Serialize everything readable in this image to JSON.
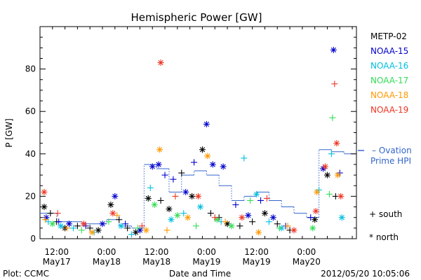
{
  "chart_data": {
    "type": "scatter",
    "title": "Hemispheric Power [GW]",
    "ylabel": "P [GW]",
    "xlabel": "Date and Time",
    "ylim": [
      0,
      100
    ],
    "yticks": [
      0,
      20,
      40,
      60,
      80
    ],
    "xlim": [
      "2012-05-17T08:00",
      "2012-05-20T12:00"
    ],
    "xticks": [
      {
        "at": "2012-05-17T12:00",
        "time": "12:00",
        "date": "May17"
      },
      {
        "at": "2012-05-18T00:00",
        "time": "0:00",
        "date": "May18"
      },
      {
        "at": "2012-05-18T12:00",
        "time": "12:00",
        "date": "May18"
      },
      {
        "at": "2012-05-19T00:00",
        "time": "0:00",
        "date": "May19"
      },
      {
        "at": "2012-05-19T12:00",
        "time": "12:00",
        "date": "May19"
      },
      {
        "at": "2012-05-20T00:00",
        "time": "0:00",
        "date": "May20"
      }
    ],
    "markers": {
      "south": "+ south",
      "north": "* north"
    },
    "series": [
      {
        "name": "METP-02",
        "color": "#000000",
        "points": [
          {
            "x": "2012-05-17T09:00",
            "y": 15,
            "m": "north"
          },
          {
            "x": "2012-05-17T10:30",
            "y": 12,
            "m": "south"
          },
          {
            "x": "2012-05-17T12:00",
            "y": 8,
            "m": "south"
          },
          {
            "x": "2012-05-17T14:00",
            "y": 5,
            "m": "north"
          },
          {
            "x": "2012-05-17T17:00",
            "y": 6,
            "m": "south"
          },
          {
            "x": "2012-05-17T20:00",
            "y": 5,
            "m": "south"
          },
          {
            "x": "2012-05-17T22:00",
            "y": 4,
            "m": "north"
          },
          {
            "x": "2012-05-18T01:00",
            "y": 16,
            "m": "north"
          },
          {
            "x": "2012-05-18T03:00",
            "y": 9,
            "m": "south"
          },
          {
            "x": "2012-05-18T05:00",
            "y": 5,
            "m": "south"
          },
          {
            "x": "2012-05-18T07:00",
            "y": 3,
            "m": "north"
          },
          {
            "x": "2012-05-18T10:00",
            "y": 19,
            "m": "north"
          },
          {
            "x": "2012-05-18T13:00",
            "y": 18,
            "m": "south"
          },
          {
            "x": "2012-05-18T15:00",
            "y": 14,
            "m": "north"
          },
          {
            "x": "2012-05-18T18:00",
            "y": 31,
            "m": "south"
          },
          {
            "x": "2012-05-18T20:30",
            "y": 20,
            "m": "north"
          },
          {
            "x": "2012-05-18T23:00",
            "y": 42,
            "m": "north"
          },
          {
            "x": "2012-05-19T01:00",
            "y": 12,
            "m": "south"
          },
          {
            "x": "2012-05-19T03:00",
            "y": 10,
            "m": "south"
          },
          {
            "x": "2012-05-19T05:00",
            "y": 7,
            "m": "north"
          },
          {
            "x": "2012-05-19T08:00",
            "y": 6,
            "m": "south"
          },
          {
            "x": "2012-05-19T11:00",
            "y": 8,
            "m": "south"
          },
          {
            "x": "2012-05-19T14:00",
            "y": 12,
            "m": "north"
          },
          {
            "x": "2012-05-19T17:00",
            "y": 7,
            "m": "south"
          },
          {
            "x": "2012-05-19T20:00",
            "y": 4,
            "m": "south"
          },
          {
            "x": "2012-05-20T02:00",
            "y": 9,
            "m": "north"
          },
          {
            "x": "2012-05-20T05:00",
            "y": 30,
            "m": "north"
          },
          {
            "x": "2012-05-20T07:00",
            "y": 20,
            "m": "south"
          }
        ]
      },
      {
        "name": "NOAA-15",
        "color": "#0000cc",
        "points": [
          {
            "x": "2012-05-17T09:30",
            "y": 10,
            "m": "north"
          },
          {
            "x": "2012-05-17T12:30",
            "y": 8,
            "m": "south"
          },
          {
            "x": "2012-05-17T15:00",
            "y": 7,
            "m": "north"
          },
          {
            "x": "2012-05-17T19:00",
            "y": 6,
            "m": "south"
          },
          {
            "x": "2012-05-17T23:00",
            "y": 7,
            "m": "north"
          },
          {
            "x": "2012-05-18T02:00",
            "y": 20,
            "m": "north"
          },
          {
            "x": "2012-05-18T04:30",
            "y": 7,
            "m": "south"
          },
          {
            "x": "2012-05-18T08:00",
            "y": 4,
            "m": "north"
          },
          {
            "x": "2012-05-18T11:00",
            "y": 34,
            "m": "north"
          },
          {
            "x": "2012-05-18T12:30",
            "y": 35,
            "m": "north"
          },
          {
            "x": "2012-05-18T14:00",
            "y": 30,
            "m": "south"
          },
          {
            "x": "2012-05-18T16:00",
            "y": 28,
            "m": "south"
          },
          {
            "x": "2012-05-18T19:00",
            "y": 22,
            "m": "north"
          },
          {
            "x": "2012-05-18T21:00",
            "y": 36,
            "m": "south"
          },
          {
            "x": "2012-05-19T00:00",
            "y": 54,
            "m": "north"
          },
          {
            "x": "2012-05-19T01:30",
            "y": 35,
            "m": "north"
          },
          {
            "x": "2012-05-19T04:00",
            "y": 34,
            "m": "north"
          },
          {
            "x": "2012-05-19T07:00",
            "y": 16,
            "m": "south"
          },
          {
            "x": "2012-05-19T10:00",
            "y": 11,
            "m": "north"
          },
          {
            "x": "2012-05-19T13:00",
            "y": 18,
            "m": "south"
          },
          {
            "x": "2012-05-19T16:00",
            "y": 10,
            "m": "north"
          },
          {
            "x": "2012-05-19T19:00",
            "y": 6,
            "m": "south"
          },
          {
            "x": "2012-05-20T01:00",
            "y": 10,
            "m": "south"
          },
          {
            "x": "2012-05-20T04:00",
            "y": 33,
            "m": "north"
          },
          {
            "x": "2012-05-20T06:30",
            "y": 89,
            "m": "north"
          },
          {
            "x": "2012-05-20T08:00",
            "y": 31,
            "m": "south"
          }
        ]
      },
      {
        "name": "NOAA-16",
        "color": "#00bfdf",
        "points": [
          {
            "x": "2012-05-17T10:00",
            "y": 8,
            "m": "south"
          },
          {
            "x": "2012-05-17T13:00",
            "y": 6,
            "m": "north"
          },
          {
            "x": "2012-05-17T16:00",
            "y": 5,
            "m": "south"
          },
          {
            "x": "2012-05-17T21:00",
            "y": 3,
            "m": "south"
          },
          {
            "x": "2012-05-18T03:30",
            "y": 6,
            "m": "north"
          },
          {
            "x": "2012-05-18T06:00",
            "y": 2,
            "m": "south"
          },
          {
            "x": "2012-05-18T10:30",
            "y": 24,
            "m": "south"
          },
          {
            "x": "2012-05-18T15:30",
            "y": 9,
            "m": "north"
          },
          {
            "x": "2012-05-18T18:30",
            "y": 12,
            "m": "south"
          },
          {
            "x": "2012-05-18T22:30",
            "y": 15,
            "m": "north"
          },
          {
            "x": "2012-05-19T03:30",
            "y": 8,
            "m": "south"
          },
          {
            "x": "2012-05-19T09:00",
            "y": 38,
            "m": "south"
          },
          {
            "x": "2012-05-19T12:00",
            "y": 21,
            "m": "north"
          },
          {
            "x": "2012-05-19T15:00",
            "y": 8,
            "m": "south"
          },
          {
            "x": "2012-05-19T18:00",
            "y": 5,
            "m": "north"
          },
          {
            "x": "2012-05-20T03:00",
            "y": 23,
            "m": "south"
          },
          {
            "x": "2012-05-20T06:00",
            "y": 40,
            "m": "south"
          },
          {
            "x": "2012-05-20T08:30",
            "y": 10,
            "m": "north"
          }
        ]
      },
      {
        "name": "NOAA-17",
        "color": "#33dd55",
        "points": [
          {
            "x": "2012-05-17T11:00",
            "y": 7,
            "m": "north"
          },
          {
            "x": "2012-05-17T18:00",
            "y": 4,
            "m": "south"
          },
          {
            "x": "2012-05-18T00:30",
            "y": 8,
            "m": "south"
          },
          {
            "x": "2012-05-18T07:30",
            "y": 5,
            "m": "south"
          },
          {
            "x": "2012-05-18T11:30",
            "y": 16,
            "m": "north"
          },
          {
            "x": "2012-05-18T17:00",
            "y": 11,
            "m": "north"
          },
          {
            "x": "2012-05-18T21:30",
            "y": 6,
            "m": "south"
          },
          {
            "x": "2012-05-19T02:30",
            "y": 9,
            "m": "north"
          },
          {
            "x": "2012-05-19T06:00",
            "y": 6,
            "m": "north"
          },
          {
            "x": "2012-05-19T10:30",
            "y": 18,
            "m": "south"
          },
          {
            "x": "2012-05-19T17:30",
            "y": 5,
            "m": "south"
          },
          {
            "x": "2012-05-20T01:30",
            "y": 5,
            "m": "north"
          },
          {
            "x": "2012-05-20T05:30",
            "y": 21,
            "m": "south"
          },
          {
            "x": "2012-05-20T06:15",
            "y": 57,
            "m": "south"
          }
        ]
      },
      {
        "name": "NOAA-18",
        "color": "#ff9900",
        "points": [
          {
            "x": "2012-05-17T09:15",
            "y": 9,
            "m": "south"
          },
          {
            "x": "2012-05-17T14:30",
            "y": 5,
            "m": "south"
          },
          {
            "x": "2012-05-17T20:30",
            "y": 3,
            "m": "north"
          },
          {
            "x": "2012-05-18T02:30",
            "y": 11,
            "m": "south"
          },
          {
            "x": "2012-05-18T09:30",
            "y": 4,
            "m": "north"
          },
          {
            "x": "2012-05-18T12:45",
            "y": 42,
            "m": "north"
          },
          {
            "x": "2012-05-18T14:30",
            "y": 4,
            "m": "south"
          },
          {
            "x": "2012-05-18T19:30",
            "y": 10,
            "m": "north"
          },
          {
            "x": "2012-05-19T00:15",
            "y": 39,
            "m": "north"
          },
          {
            "x": "2012-05-19T04:30",
            "y": 8,
            "m": "south"
          },
          {
            "x": "2012-05-19T12:30",
            "y": 3,
            "m": "north"
          },
          {
            "x": "2012-05-19T19:30",
            "y": 6,
            "m": "south"
          },
          {
            "x": "2012-05-20T02:30",
            "y": 22,
            "m": "north"
          },
          {
            "x": "2012-05-20T07:30",
            "y": 30,
            "m": "north"
          }
        ]
      },
      {
        "name": "NOAA-19",
        "color": "#ee3322",
        "points": [
          {
            "x": "2012-05-17T09:00",
            "y": 22,
            "m": "north"
          },
          {
            "x": "2012-05-17T12:15",
            "y": 12,
            "m": "south"
          },
          {
            "x": "2012-05-17T18:30",
            "y": 7,
            "m": "north"
          },
          {
            "x": "2012-05-18T01:30",
            "y": 12,
            "m": "north"
          },
          {
            "x": "2012-05-18T08:30",
            "y": 6,
            "m": "south"
          },
          {
            "x": "2012-05-18T13:00",
            "y": 83,
            "m": "north"
          },
          {
            "x": "2012-05-18T16:30",
            "y": 20,
            "m": "south"
          },
          {
            "x": "2012-05-18T22:00",
            "y": 20,
            "m": "north"
          },
          {
            "x": "2012-05-19T02:00",
            "y": 10,
            "m": "south"
          },
          {
            "x": "2012-05-19T08:30",
            "y": 10,
            "m": "north"
          },
          {
            "x": "2012-05-19T14:30",
            "y": 19,
            "m": "south"
          },
          {
            "x": "2012-05-19T21:00",
            "y": 4,
            "m": "north"
          },
          {
            "x": "2012-05-20T02:15",
            "y": 13,
            "m": "north"
          },
          {
            "x": "2012-05-20T04:30",
            "y": 34,
            "m": "north"
          },
          {
            "x": "2012-05-20T06:45",
            "y": 73,
            "m": "south"
          },
          {
            "x": "2012-05-20T07:15",
            "y": 45,
            "m": "north"
          },
          {
            "x": "2012-05-20T08:15",
            "y": 20,
            "m": "north"
          }
        ]
      }
    ],
    "ovation": {
      "label_line1": "– Ovation",
      "label_line2": "Prime HPI",
      "color": "#3366cc",
      "steps": [
        {
          "x": "2012-05-17T08:00",
          "y": 12
        },
        {
          "x": "2012-05-17T12:00",
          "y": 8
        },
        {
          "x": "2012-05-17T18:00",
          "y": 7
        },
        {
          "x": "2012-05-18T00:00",
          "y": 9
        },
        {
          "x": "2012-05-18T03:00",
          "y": 6
        },
        {
          "x": "2012-05-18T06:00",
          "y": 5
        },
        {
          "x": "2012-05-18T09:00",
          "y": 35
        },
        {
          "x": "2012-05-18T12:00",
          "y": 33
        },
        {
          "x": "2012-05-18T15:00",
          "y": 22
        },
        {
          "x": "2012-05-18T18:00",
          "y": 30
        },
        {
          "x": "2012-05-18T21:00",
          "y": 32
        },
        {
          "x": "2012-05-19T00:00",
          "y": 30
        },
        {
          "x": "2012-05-19T03:00",
          "y": 25
        },
        {
          "x": "2012-05-19T06:00",
          "y": 18
        },
        {
          "x": "2012-05-19T09:00",
          "y": 20
        },
        {
          "x": "2012-05-19T12:00",
          "y": 22
        },
        {
          "x": "2012-05-19T15:00",
          "y": 18
        },
        {
          "x": "2012-05-19T18:00",
          "y": 15
        },
        {
          "x": "2012-05-19T21:00",
          "y": 12
        },
        {
          "x": "2012-05-20T00:00",
          "y": 10
        },
        {
          "x": "2012-05-20T03:00",
          "y": 42
        },
        {
          "x": "2012-05-20T06:00",
          "y": 41
        },
        {
          "x": "2012-05-20T09:00",
          "y": 40
        },
        {
          "x": "2012-05-20T12:00",
          "y": 40
        }
      ]
    },
    "footer": {
      "left": "Plot: CCMC",
      "right": "2012/05/20 10:05:06"
    }
  }
}
